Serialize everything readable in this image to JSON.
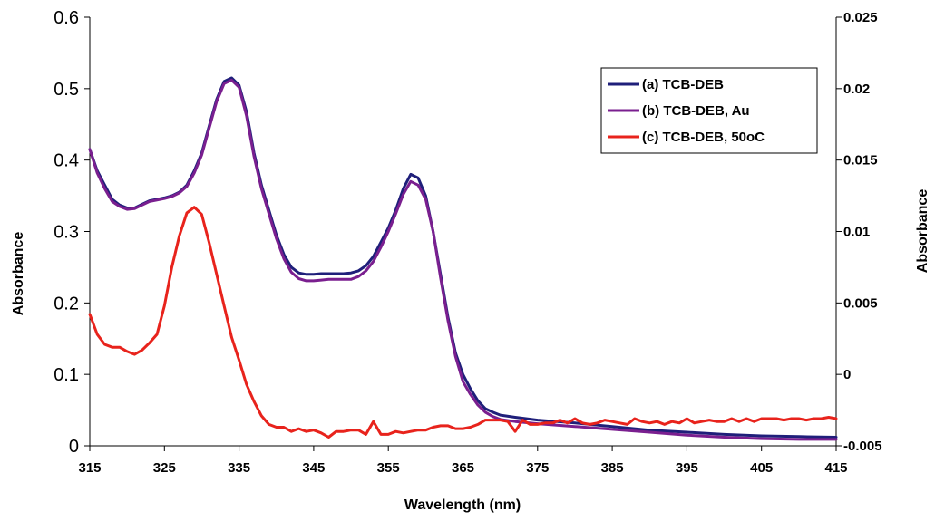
{
  "chart_data": {
    "type": "line",
    "title": "",
    "xlabel": "Wavelength (nm)",
    "ylabel_left": "Absorbance",
    "ylabel_right": "Absorbance",
    "xlim": [
      315,
      415
    ],
    "ylim_left": [
      0,
      0.6
    ],
    "ylim_right": [
      -0.005,
      0.025
    ],
    "x_ticks": [
      "315",
      "325",
      "335",
      "345",
      "355",
      "365",
      "375",
      "385",
      "395",
      "405",
      "415"
    ],
    "y_ticks_left": [
      "0",
      "0.1",
      "0.2",
      "0.3",
      "0.4",
      "0.5",
      "0.6"
    ],
    "y_ticks_right": [
      "-0.005",
      "0",
      "0.005",
      "0.01",
      "0.015",
      "0.02",
      "0.025"
    ],
    "grid": false,
    "legend_position": "top-right",
    "colors": {
      "a": "#1f1f7a",
      "b": "#7a1f8f",
      "c": "#e8231c"
    },
    "series": [
      {
        "name": "(a) TCB-DEB",
        "axis": "left",
        "x": [
          315,
          316,
          317,
          318,
          319,
          320,
          321,
          322,
          323,
          324,
          325,
          326,
          327,
          328,
          329,
          330,
          331,
          332,
          333,
          334,
          335,
          336,
          337,
          338,
          339,
          340,
          341,
          342,
          343,
          344,
          345,
          346,
          347,
          348,
          349,
          350,
          351,
          352,
          353,
          354,
          355,
          356,
          357,
          358,
          359,
          360,
          361,
          362,
          363,
          364,
          365,
          366,
          367,
          368,
          369,
          370,
          372,
          375,
          380,
          385,
          390,
          395,
          400,
          405,
          410,
          415
        ],
        "y": [
          0.415,
          0.385,
          0.365,
          0.345,
          0.337,
          0.333,
          0.333,
          0.338,
          0.343,
          0.345,
          0.347,
          0.35,
          0.355,
          0.365,
          0.385,
          0.41,
          0.448,
          0.485,
          0.51,
          0.515,
          0.505,
          0.468,
          0.41,
          0.365,
          0.33,
          0.295,
          0.268,
          0.25,
          0.242,
          0.24,
          0.24,
          0.241,
          0.241,
          0.241,
          0.241,
          0.242,
          0.245,
          0.252,
          0.265,
          0.285,
          0.305,
          0.33,
          0.36,
          0.38,
          0.375,
          0.35,
          0.3,
          0.24,
          0.18,
          0.13,
          0.1,
          0.08,
          0.063,
          0.052,
          0.047,
          0.043,
          0.04,
          0.036,
          0.032,
          0.027,
          0.022,
          0.019,
          0.016,
          0.014,
          0.013,
          0.012
        ]
      },
      {
        "name": "(b) TCB-DEB, Au",
        "axis": "left",
        "x": [
          315,
          316,
          317,
          318,
          319,
          320,
          321,
          322,
          323,
          324,
          325,
          326,
          327,
          328,
          329,
          330,
          331,
          332,
          333,
          334,
          335,
          336,
          337,
          338,
          339,
          340,
          341,
          342,
          343,
          344,
          345,
          346,
          347,
          348,
          349,
          350,
          351,
          352,
          353,
          354,
          355,
          356,
          357,
          358,
          359,
          360,
          361,
          362,
          363,
          364,
          365,
          366,
          367,
          368,
          369,
          370,
          372,
          375,
          380,
          385,
          390,
          395,
          400,
          405,
          410,
          415
        ],
        "y": [
          0.415,
          0.382,
          0.36,
          0.342,
          0.335,
          0.331,
          0.332,
          0.337,
          0.342,
          0.344,
          0.346,
          0.349,
          0.354,
          0.363,
          0.382,
          0.407,
          0.445,
          0.482,
          0.507,
          0.512,
          0.502,
          0.462,
          0.405,
          0.36,
          0.325,
          0.29,
          0.262,
          0.243,
          0.234,
          0.231,
          0.231,
          0.232,
          0.233,
          0.233,
          0.233,
          0.233,
          0.237,
          0.245,
          0.258,
          0.278,
          0.3,
          0.325,
          0.352,
          0.37,
          0.365,
          0.345,
          0.3,
          0.235,
          0.175,
          0.125,
          0.09,
          0.072,
          0.057,
          0.047,
          0.041,
          0.037,
          0.034,
          0.031,
          0.027,
          0.023,
          0.019,
          0.015,
          0.012,
          0.01,
          0.009,
          0.009
        ]
      },
      {
        "name": "(c) TCB-DEB, 50oC",
        "axis": "right",
        "x": [
          315,
          316,
          317,
          318,
          319,
          320,
          321,
          322,
          323,
          324,
          325,
          326,
          327,
          328,
          329,
          330,
          331,
          332,
          333,
          334,
          335,
          336,
          337,
          338,
          339,
          340,
          341,
          342,
          343,
          344,
          345,
          346,
          347,
          348,
          349,
          350,
          351,
          352,
          353,
          354,
          355,
          356,
          357,
          358,
          359,
          360,
          361,
          362,
          363,
          364,
          365,
          366,
          367,
          368,
          369,
          370,
          371,
          372,
          373,
          374,
          375,
          376,
          377,
          378,
          379,
          380,
          381,
          382,
          383,
          384,
          385,
          386,
          387,
          388,
          389,
          390,
          391,
          392,
          393,
          394,
          395,
          396,
          397,
          398,
          399,
          400,
          401,
          402,
          403,
          404,
          405,
          406,
          407,
          408,
          409,
          410,
          411,
          412,
          413,
          414,
          415
        ],
        "y": [
          0.0042,
          0.0028,
          0.0021,
          0.0019,
          0.0019,
          0.0016,
          0.0014,
          0.0017,
          0.0022,
          0.0028,
          0.0048,
          0.0075,
          0.0097,
          0.0113,
          0.0117,
          0.0112,
          0.0092,
          0.007,
          0.0048,
          0.0026,
          0.001,
          -0.0007,
          -0.0019,
          -0.0029,
          -0.0035,
          -0.0037,
          -0.0037,
          -0.004,
          -0.0038,
          -0.004,
          -0.0039,
          -0.0041,
          -0.0044,
          -0.004,
          -0.004,
          -0.0039,
          -0.0039,
          -0.0042,
          -0.0033,
          -0.0042,
          -0.0042,
          -0.004,
          -0.0041,
          -0.004,
          -0.0039,
          -0.0039,
          -0.0037,
          -0.0036,
          -0.0036,
          -0.0038,
          -0.0038,
          -0.0037,
          -0.0035,
          -0.0032,
          -0.0032,
          -0.0032,
          -0.0033,
          -0.004,
          -0.0032,
          -0.0035,
          -0.0035,
          -0.0034,
          -0.0034,
          -0.0032,
          -0.0034,
          -0.0031,
          -0.0034,
          -0.0035,
          -0.0034,
          -0.0032,
          -0.0033,
          -0.0034,
          -0.0035,
          -0.0031,
          -0.0033,
          -0.0034,
          -0.0033,
          -0.0035,
          -0.0033,
          -0.0034,
          -0.0031,
          -0.0034,
          -0.0033,
          -0.0032,
          -0.0033,
          -0.0033,
          -0.0031,
          -0.0033,
          -0.0031,
          -0.0033,
          -0.0031,
          -0.0031,
          -0.0031,
          -0.0032,
          -0.0031,
          -0.0031,
          -0.0032,
          -0.0031,
          -0.0031,
          -0.003,
          -0.0031
        ]
      }
    ]
  }
}
